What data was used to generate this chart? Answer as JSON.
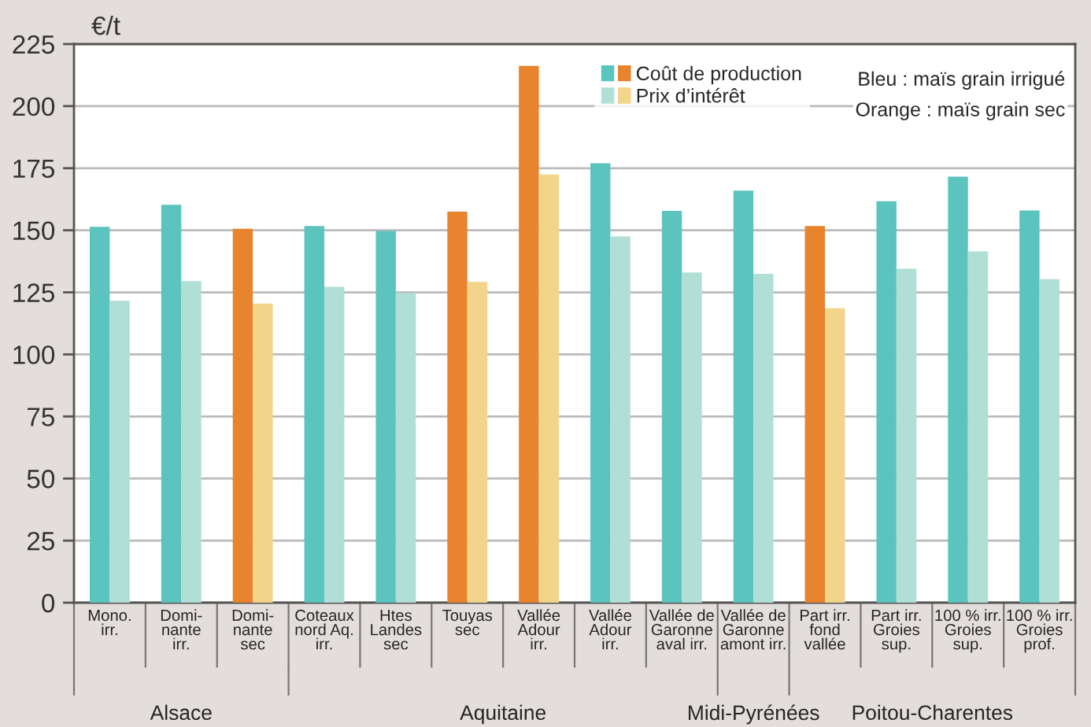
{
  "chart_data": {
    "type": "bar",
    "ylabel": "€/t",
    "categories": [
      "Mono.\nirr.",
      "Domi-\nnante\nirr.",
      "Domi-\nnante\nsec",
      "Coteaux\nnord Aq.\nirr.",
      "Htes\nLandes\nsec",
      "Touyas\nsec",
      "Vallée\nAdour\nirr.",
      "Vallée\nAdour\nirr.",
      "Vallée de\nGaronne\naval irr.",
      "Vallée de\nGaronne\namont irr.",
      "Part irr.\nfond\nvallée",
      "Part irr.\nGroies\nsup.",
      "100 % irr.\nGroies\nsup.",
      "100 % irr.\nGroies\nprof."
    ],
    "series": [
      {
        "name": "Coût de production",
        "colors": [
          "#5bc4bf",
          "#5bc4bf",
          "#e8832e",
          "#5bc4bf",
          "#5bc4bf",
          "#e8832e",
          "#e8832e",
          "#5bc4bf",
          "#5bc4bf",
          "#5bc4bf",
          "#e8832e",
          "#5bc4bf",
          "#5bc4bf",
          "#5bc4bf"
        ],
        "values": [
          151.4,
          160.3,
          150.6,
          151.7,
          149.7,
          157.5,
          216.2,
          177,
          157.8,
          166,
          151.7,
          161.7,
          171.6,
          158
        ]
      },
      {
        "name": "Prix d’intérêt",
        "colors": [
          "#b2dfd5",
          "#b2dfd5",
          "#f2d58b",
          "#b2dfd5",
          "#b2dfd5",
          "#f2d58b",
          "#f2d58b",
          "#b2dfd5",
          "#b2dfd5",
          "#b2dfd5",
          "#f2d58b",
          "#b2dfd5",
          "#b2dfd5",
          "#b2dfd5"
        ],
        "values": [
          121.6,
          129.5,
          120.5,
          127.2,
          124.7,
          129.2,
          172.5,
          147.5,
          133,
          132.5,
          118.6,
          134.5,
          141.5,
          130.3
        ]
      }
    ],
    "ylim": [
      0,
      225
    ],
    "yticks": [
      0,
      25,
      50,
      75,
      100,
      125,
      150,
      175,
      200,
      225
    ],
    "grid": "y",
    "legend": "top right",
    "annotations": [
      "Bleu : maïs grain irrigué",
      "Orange : maïs grain sec",
      "Alsace",
      "Aquitaine",
      "Midi-Pyrénées",
      "Poitou-Charentes"
    ]
  }
}
